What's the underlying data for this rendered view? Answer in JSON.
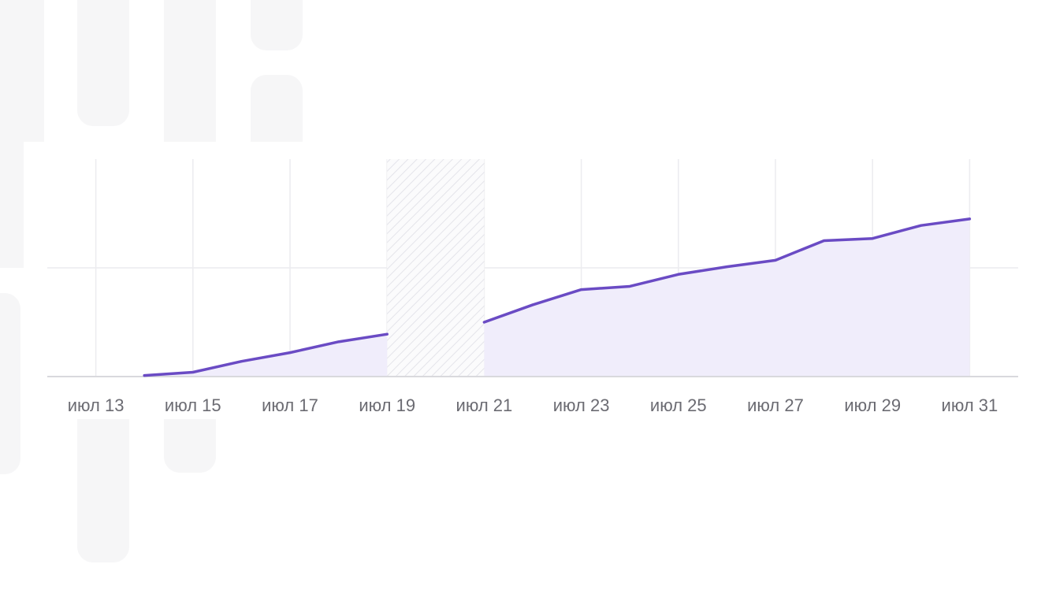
{
  "colors": {
    "line": "#6a4bc4",
    "area": "#f0edfb",
    "grid": "#ececef",
    "axis": "#d9d9dd",
    "gap_hatch": "#e4e4ea",
    "background_shapes": "#f6f6f7"
  },
  "chart_data": {
    "type": "area",
    "x_ticks": [
      "июл 13",
      "июл 15",
      "июл 17",
      "июл 19",
      "июл 21",
      "июл 23",
      "июл 25",
      "июл 27",
      "июл 29",
      "июл 31"
    ],
    "x_tick_days": [
      13,
      15,
      17,
      19,
      21,
      23,
      25,
      27,
      29,
      31
    ],
    "xlim": [
      12,
      32
    ],
    "ylim": [
      0,
      100
    ],
    "grid": true,
    "missing_data_range": [
      19,
      21
    ],
    "series": [
      {
        "segments": [
          [
            {
              "x": 14,
              "y": 0.5
            },
            {
              "x": 15,
              "y": 2
            },
            {
              "x": 16,
              "y": 7
            },
            {
              "x": 17,
              "y": 11
            },
            {
              "x": 18,
              "y": 16
            },
            {
              "x": 19,
              "y": 19.5
            }
          ],
          [
            {
              "x": 21,
              "y": 25
            },
            {
              "x": 22,
              "y": 33
            },
            {
              "x": 23,
              "y": 40
            },
            {
              "x": 24,
              "y": 41.5
            },
            {
              "x": 25,
              "y": 47
            },
            {
              "x": 26,
              "y": 50.5
            },
            {
              "x": 27,
              "y": 53.5
            },
            {
              "x": 28,
              "y": 62.5
            },
            {
              "x": 29,
              "y": 63.5
            },
            {
              "x": 30,
              "y": 69.5
            },
            {
              "x": 31,
              "y": 72.5
            }
          ]
        ]
      }
    ]
  }
}
